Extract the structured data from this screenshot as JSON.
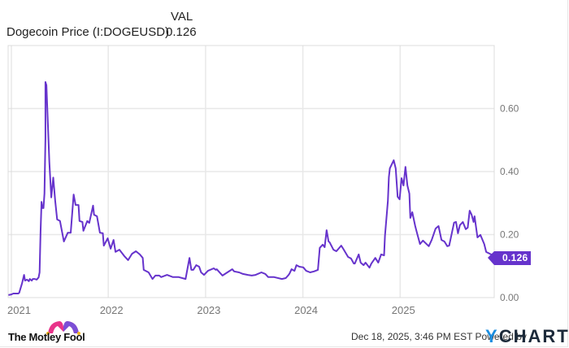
{
  "header": {
    "column_label": "VAL",
    "series_name": "Dogecoin Price (I:DOGEUSD)",
    "series_value": "0.126"
  },
  "current_price_label": "0.126",
  "footer": {
    "brand_left": "The Motley Fool",
    "timestamp": "Dec 18, 2025, 3:46 PM EST",
    "powered_by": "Powered by",
    "brand_right_y": "Y",
    "brand_right_rest": "CHARTS"
  },
  "colors": {
    "line": "#6633cc",
    "label_bg": "#6633cc",
    "grid": "#e8e8e8",
    "axis_text": "#777777",
    "ycharts_y": "#1b8ee0"
  },
  "chart_data": {
    "type": "line",
    "title": "Dogecoin Price (I:DOGEUSD)",
    "xlabel": "",
    "ylabel": "",
    "x_ticks": [
      "2021",
      "2022",
      "2023",
      "2024",
      "2025"
    ],
    "y_ticks": [
      "0.00",
      "0.20",
      "0.40",
      "0.60"
    ],
    "ylim": [
      0,
      0.74
    ],
    "xlim": [
      2020.97,
      2025.97
    ],
    "grid": true,
    "legend": false,
    "last_value": 0.126,
    "series": [
      {
        "name": "Dogecoin Price (I:DOGEUSD)",
        "points": [
          [
            2020.97,
            0.008
          ],
          [
            2021.0,
            0.01
          ],
          [
            2021.02,
            0.013
          ],
          [
            2021.07,
            0.013
          ],
          [
            2021.08,
            0.015
          ],
          [
            2021.11,
            0.046
          ],
          [
            2021.13,
            0.072
          ],
          [
            2021.14,
            0.054
          ],
          [
            2021.16,
            0.057
          ],
          [
            2021.18,
            0.052
          ],
          [
            2021.19,
            0.059
          ],
          [
            2021.21,
            0.054
          ],
          [
            2021.22,
            0.059
          ],
          [
            2021.24,
            0.059
          ],
          [
            2021.26,
            0.057
          ],
          [
            2021.28,
            0.064
          ],
          [
            2021.29,
            0.08
          ],
          [
            2021.3,
            0.209
          ],
          [
            2021.31,
            0.304
          ],
          [
            2021.32,
            0.284
          ],
          [
            2021.33,
            0.284
          ],
          [
            2021.34,
            0.33
          ],
          [
            2021.35,
            0.506
          ],
          [
            2021.35,
            0.684
          ],
          [
            2021.36,
            0.674
          ],
          [
            2021.38,
            0.511
          ],
          [
            2021.39,
            0.43
          ],
          [
            2021.41,
            0.318
          ],
          [
            2021.43,
            0.381
          ],
          [
            2021.45,
            0.307
          ],
          [
            2021.47,
            0.248
          ],
          [
            2021.5,
            0.243
          ],
          [
            2021.54,
            0.178
          ],
          [
            2021.58,
            0.206
          ],
          [
            2021.61,
            0.206
          ],
          [
            2021.64,
            0.327
          ],
          [
            2021.66,
            0.294
          ],
          [
            2021.69,
            0.294
          ],
          [
            2021.7,
            0.243
          ],
          [
            2021.73,
            0.24
          ],
          [
            2021.74,
            0.212
          ],
          [
            2021.78,
            0.243
          ],
          [
            2021.8,
            0.237
          ],
          [
            2021.84,
            0.292
          ],
          [
            2021.85,
            0.263
          ],
          [
            2021.88,
            0.258
          ],
          [
            2021.91,
            0.206
          ],
          [
            2021.94,
            0.204
          ],
          [
            2021.95,
            0.165
          ],
          [
            2021.99,
            0.188
          ],
          [
            2022.02,
            0.155
          ],
          [
            2022.05,
            0.183
          ],
          [
            2022.07,
            0.145
          ],
          [
            2022.11,
            0.152
          ],
          [
            2022.16,
            0.132
          ],
          [
            2022.2,
            0.119
          ],
          [
            2022.24,
            0.139
          ],
          [
            2022.28,
            0.147
          ],
          [
            2022.32,
            0.137
          ],
          [
            2022.35,
            0.126
          ],
          [
            2022.36,
            0.088
          ],
          [
            2022.41,
            0.08
          ],
          [
            2022.45,
            0.059
          ],
          [
            2022.48,
            0.07
          ],
          [
            2022.52,
            0.07
          ],
          [
            2022.54,
            0.065
          ],
          [
            2022.6,
            0.072
          ],
          [
            2022.66,
            0.065
          ],
          [
            2022.69,
            0.065
          ],
          [
            2022.72,
            0.065
          ],
          [
            2022.79,
            0.059
          ],
          [
            2022.83,
            0.126
          ],
          [
            2022.85,
            0.088
          ],
          [
            2022.87,
            0.088
          ],
          [
            2022.9,
            0.103
          ],
          [
            2022.93,
            0.098
          ],
          [
            2022.95,
            0.08
          ],
          [
            2022.98,
            0.072
          ],
          [
            2023.02,
            0.085
          ],
          [
            2023.08,
            0.093
          ],
          [
            2023.1,
            0.088
          ],
          [
            2023.11,
            0.09
          ],
          [
            2023.17,
            0.07
          ],
          [
            2023.22,
            0.08
          ],
          [
            2023.27,
            0.09
          ],
          [
            2023.29,
            0.083
          ],
          [
            2023.34,
            0.08
          ],
          [
            2023.38,
            0.075
          ],
          [
            2023.43,
            0.072
          ],
          [
            2023.47,
            0.07
          ],
          [
            2023.51,
            0.072
          ],
          [
            2023.57,
            0.08
          ],
          [
            2023.61,
            0.075
          ],
          [
            2023.64,
            0.065
          ],
          [
            2023.7,
            0.065
          ],
          [
            2023.78,
            0.059
          ],
          [
            2023.82,
            0.062
          ],
          [
            2023.85,
            0.072
          ],
          [
            2023.86,
            0.077
          ],
          [
            2023.88,
            0.09
          ],
          [
            2023.91,
            0.085
          ],
          [
            2023.93,
            0.103
          ],
          [
            2023.96,
            0.098
          ],
          [
            2024.0,
            0.096
          ],
          [
            2024.03,
            0.085
          ],
          [
            2024.07,
            0.08
          ],
          [
            2024.11,
            0.083
          ],
          [
            2024.15,
            0.088
          ],
          [
            2024.17,
            0.158
          ],
          [
            2024.2,
            0.168
          ],
          [
            2024.22,
            0.16
          ],
          [
            2024.24,
            0.214
          ],
          [
            2024.26,
            0.178
          ],
          [
            2024.27,
            0.176
          ],
          [
            2024.31,
            0.152
          ],
          [
            2024.34,
            0.147
          ],
          [
            2024.39,
            0.165
          ],
          [
            2024.41,
            0.155
          ],
          [
            2024.46,
            0.129
          ],
          [
            2024.49,
            0.124
          ],
          [
            2024.52,
            0.108
          ],
          [
            2024.53,
            0.108
          ],
          [
            2024.57,
            0.137
          ],
          [
            2024.59,
            0.111
          ],
          [
            2024.62,
            0.103
          ],
          [
            2024.64,
            0.111
          ],
          [
            2024.68,
            0.095
          ],
          [
            2024.7,
            0.108
          ],
          [
            2024.74,
            0.126
          ],
          [
            2024.77,
            0.111
          ],
          [
            2024.8,
            0.137
          ],
          [
            2024.83,
            0.134
          ],
          [
            2024.84,
            0.196
          ],
          [
            2024.87,
            0.307
          ],
          [
            2024.88,
            0.382
          ],
          [
            2024.89,
            0.41
          ],
          [
            2024.93,
            0.436
          ],
          [
            2024.95,
            0.41
          ],
          [
            2024.97,
            0.32
          ],
          [
            2024.99,
            0.312
          ],
          [
            2025.01,
            0.379
          ],
          [
            2025.03,
            0.356
          ],
          [
            2025.05,
            0.415
          ],
          [
            2025.07,
            0.356
          ],
          [
            2025.09,
            0.33
          ],
          [
            2025.1,
            0.253
          ],
          [
            2025.12,
            0.271
          ],
          [
            2025.15,
            0.227
          ],
          [
            2025.17,
            0.204
          ],
          [
            2025.2,
            0.17
          ],
          [
            2025.23,
            0.181
          ],
          [
            2025.29,
            0.163
          ],
          [
            2025.32,
            0.183
          ],
          [
            2025.36,
            0.219
          ],
          [
            2025.39,
            0.227
          ],
          [
            2025.42,
            0.183
          ],
          [
            2025.45,
            0.178
          ],
          [
            2025.48,
            0.163
          ],
          [
            2025.5,
            0.165
          ],
          [
            2025.55,
            0.238
          ],
          [
            2025.57,
            0.24
          ],
          [
            2025.59,
            0.204
          ],
          [
            2025.61,
            0.23
          ],
          [
            2025.64,
            0.24
          ],
          [
            2025.67,
            0.217
          ],
          [
            2025.69,
            0.222
          ],
          [
            2025.71,
            0.276
          ],
          [
            2025.73,
            0.263
          ],
          [
            2025.75,
            0.24
          ],
          [
            2025.76,
            0.258
          ],
          [
            2025.79,
            0.191
          ],
          [
            2025.82,
            0.199
          ],
          [
            2025.86,
            0.17
          ],
          [
            2025.88,
            0.145
          ],
          [
            2025.93,
            0.137
          ],
          [
            2025.97,
            0.126
          ]
        ]
      }
    ]
  }
}
